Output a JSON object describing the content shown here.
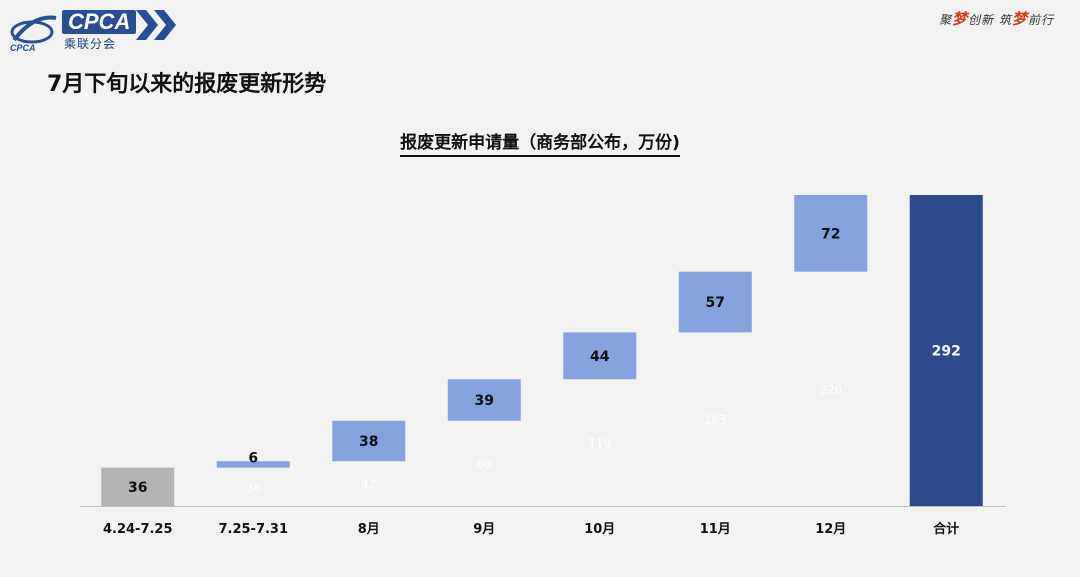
{
  "header": {
    "logo_text": "CPCA",
    "logo_sub": "乘联分会",
    "slogan_a": "聚",
    "slogan_b": "梦",
    "slogan_c": "创新 筑",
    "slogan_d": "梦",
    "slogan_e": "前行",
    "page_title": "7月下旬以来的报废更新形势"
  },
  "colors": {
    "base": "#b3b3b3",
    "increment": "#86a2dc",
    "total": "#2c4a8c",
    "hidden_label": "#ffffff"
  },
  "chart_data": {
    "type": "bar",
    "subtype": "waterfall",
    "title": "报废更新申请量（商务部公布，万份)",
    "categories": [
      "4.24-7.25",
      "7.25-7.31",
      "8月",
      "9月",
      "10月",
      "11月",
      "12月",
      "合计"
    ],
    "values": [
      36,
      6,
      38,
      39,
      44,
      57,
      72,
      292
    ],
    "offsets": [
      0,
      36,
      42,
      80,
      119,
      163,
      220,
      0
    ],
    "offset_labels": [
      "",
      "36",
      "42",
      "80",
      "119",
      "163",
      "220",
      ""
    ],
    "kinds": [
      "base",
      "increment",
      "increment",
      "increment",
      "increment",
      "increment",
      "increment",
      "total"
    ],
    "ylim": [
      0,
      292
    ],
    "xlabel": "",
    "ylabel": "",
    "grid": false,
    "legend": "none"
  }
}
